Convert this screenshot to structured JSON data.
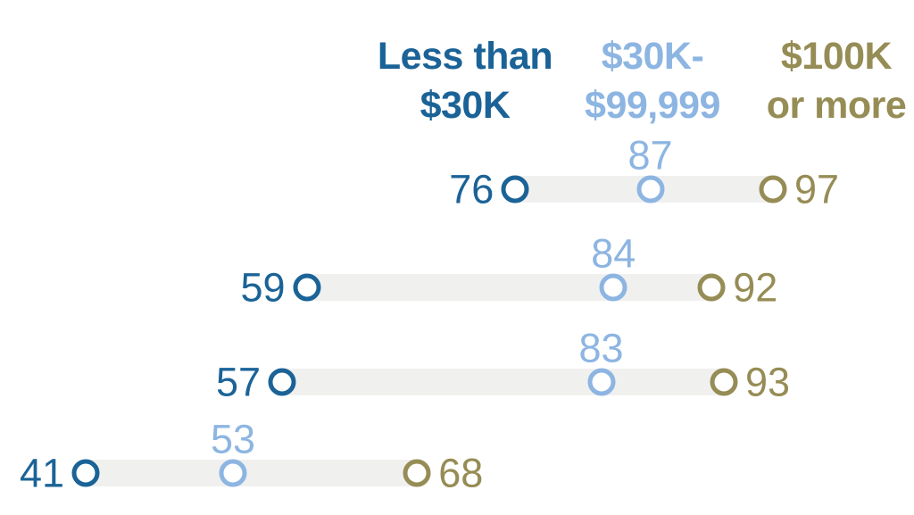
{
  "chart_data": {
    "type": "scatter",
    "variant": "dumbbell-dot-plot",
    "title": "",
    "legend_position": "top",
    "grid": false,
    "xlim": [
      41,
      97
    ],
    "connector_color": "#f0f0ef",
    "background_color": "#ffffff",
    "columns": [
      {
        "label": "Less than $30K",
        "label_lines": [
          "Less than",
          "$30K"
        ],
        "color": "#1b6397",
        "key": "less-than-30k"
      },
      {
        "label": "$30K-$99,999",
        "label_lines": [
          "$30K-",
          "$99,999"
        ],
        "color": "#8db5e2",
        "key": "30k-to-99999"
      },
      {
        "label": "$100K or more",
        "label_lines": [
          "$100K",
          "or more"
        ],
        "color": "#968c55",
        "key": "100k-or-more"
      }
    ],
    "rows": [
      {
        "values": [
          76,
          87,
          97
        ]
      },
      {
        "values": [
          59,
          84,
          92
        ]
      },
      {
        "values": [
          57,
          83,
          93
        ]
      },
      {
        "values": [
          41,
          53,
          68
        ]
      }
    ]
  }
}
